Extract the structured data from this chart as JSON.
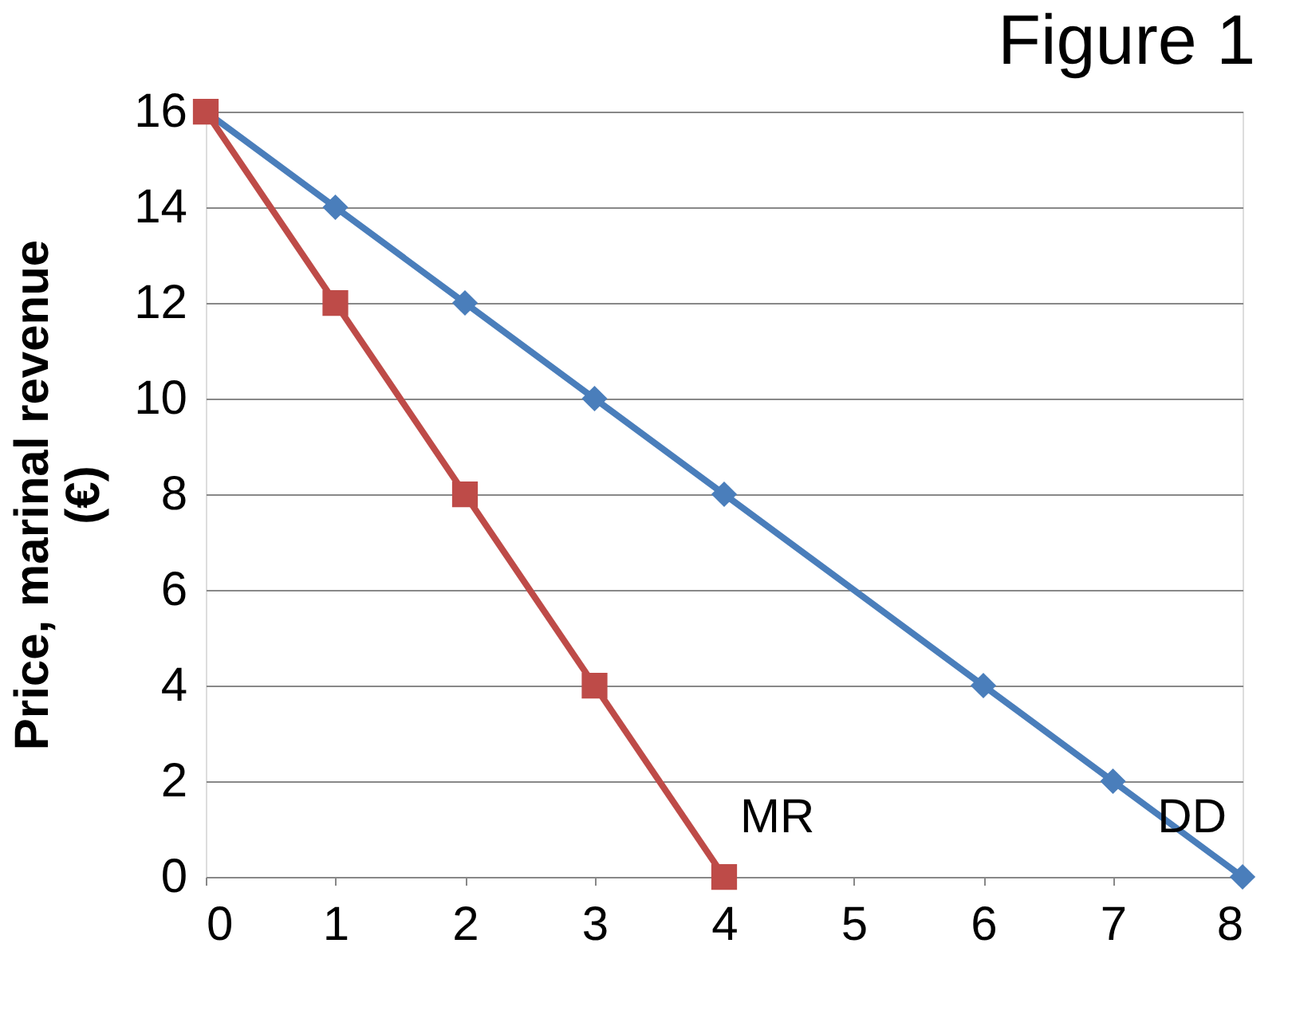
{
  "chart_data": {
    "type": "line",
    "title": "Figure 1",
    "ylabel": "Price, marinal revenue (€)",
    "xlim": [
      0,
      8
    ],
    "xticks": [
      0,
      1,
      2,
      3,
      4,
      5,
      6,
      7,
      8
    ],
    "ylim": [
      0,
      16
    ],
    "yticks": [
      0,
      2,
      4,
      6,
      8,
      10,
      12,
      14,
      16
    ],
    "grid": "y",
    "series": [
      {
        "color": "#4a7ebb",
        "marker": "diamond",
        "x": [
          0,
          1,
          2,
          3,
          4,
          6,
          7,
          8
        ],
        "values": [
          16,
          14,
          12,
          10,
          8,
          4,
          2,
          0
        ]
      },
      {
        "color": "#be4b48",
        "marker": "square",
        "x": [
          0,
          1,
          2,
          3,
          4
        ],
        "values": [
          16,
          12,
          8,
          4,
          0
        ]
      }
    ],
    "annotations": [
      "MR",
      "DD"
    ]
  }
}
